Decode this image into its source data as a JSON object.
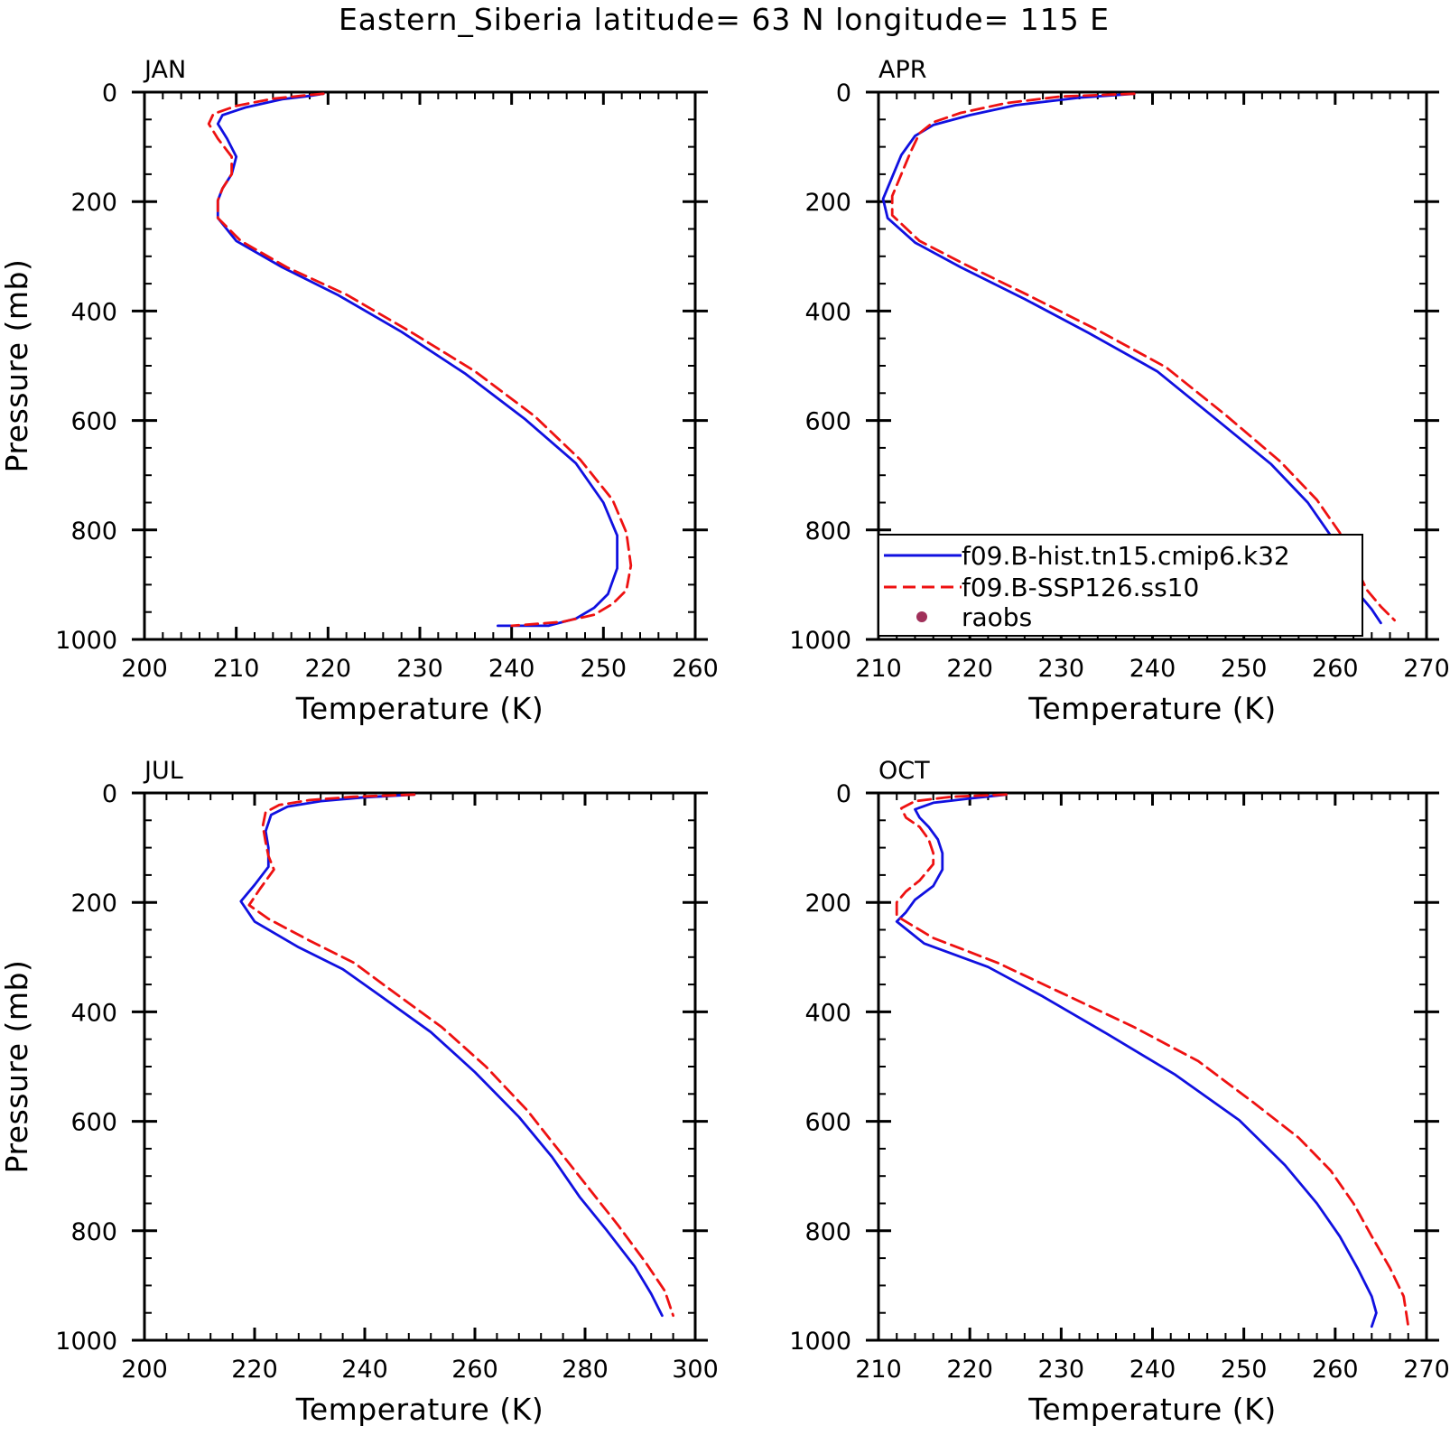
{
  "title": "Eastern_Siberia  latitude= 63 N longitude= 115 E",
  "colors": {
    "hist": "#1010e0",
    "ssp": "#ee1111",
    "raobs": "#a0305a"
  },
  "legend": {
    "location": "lower-right of APR panel",
    "entries": [
      {
        "label": "f09.B-hist.tn15.cmip6.k32",
        "style": "solid",
        "color": "#1010e0"
      },
      {
        "label": "f09.B-SSP126.ss10",
        "style": "dashed",
        "color": "#ee1111"
      },
      {
        "label": "raobs",
        "style": "dot",
        "color": "#a0305a"
      }
    ]
  },
  "chart_data": [
    {
      "type": "line",
      "title": "JAN",
      "xlabel": "Temperature (K)",
      "ylabel": "Pressure (mb)",
      "xlim": [
        200,
        260
      ],
      "ylim": [
        1000,
        0
      ],
      "xticks": [
        200,
        210,
        220,
        230,
        240,
        250,
        260
      ],
      "yticks": [
        0,
        200,
        400,
        600,
        800,
        1000
      ],
      "series": [
        {
          "name": "f09.B-hist.tn15.cmip6.k32",
          "style": "solid",
          "color": "#1010e0",
          "points": [
            [
              219.5,
              3
            ],
            [
              218,
              7
            ],
            [
              215,
              13
            ],
            [
              211,
              28
            ],
            [
              208.5,
              42
            ],
            [
              208,
              58
            ],
            [
              209,
              85
            ],
            [
              210,
              118
            ],
            [
              209.5,
              150
            ],
            [
              208.5,
              176
            ],
            [
              208,
              198
            ],
            [
              208,
              230
            ],
            [
              210,
              272
            ],
            [
              215,
              320
            ],
            [
              221,
              370
            ],
            [
              228,
              438
            ],
            [
              235,
              515
            ],
            [
              241.5,
              598
            ],
            [
              247,
              678
            ],
            [
              250,
              750
            ],
            [
              251.5,
              810
            ],
            [
              251.5,
              870
            ],
            [
              250.5,
              917
            ],
            [
              249,
              942
            ],
            [
              247,
              962
            ],
            [
              244,
              975
            ],
            [
              238.5,
              975
            ]
          ]
        },
        {
          "name": "f09.B-SSP126.ss10",
          "style": "dashed",
          "color": "#ee1111",
          "points": [
            [
              219.5,
              3
            ],
            [
              217.5,
              6
            ],
            [
              214,
              12
            ],
            [
              210,
              25
            ],
            [
              207.5,
              40
            ],
            [
              207,
              58
            ],
            [
              208,
              85
            ],
            [
              209.5,
              118
            ],
            [
              209.5,
              150
            ],
            [
              208.5,
              176
            ],
            [
              208,
              198
            ],
            [
              208,
              230
            ],
            [
              210.5,
              272
            ],
            [
              215.5,
              320
            ],
            [
              222,
              370
            ],
            [
              229,
              438
            ],
            [
              236,
              510
            ],
            [
              242.5,
              592
            ],
            [
              247.5,
              672
            ],
            [
              251,
              745
            ],
            [
              252.5,
              805
            ],
            [
              253,
              865
            ],
            [
              252.5,
              910
            ],
            [
              251,
              935
            ],
            [
              249,
              955
            ],
            [
              245.5,
              968
            ],
            [
              240,
              975
            ]
          ]
        }
      ]
    },
    {
      "type": "line",
      "title": "APR",
      "xlabel": "Temperature (K)",
      "ylabel": "",
      "xlim": [
        210,
        270
      ],
      "ylim": [
        1000,
        0
      ],
      "xticks": [
        210,
        220,
        230,
        240,
        250,
        260,
        270
      ],
      "yticks": [
        0,
        200,
        400,
        600,
        800,
        1000
      ],
      "series": [
        {
          "name": "f09.B-hist.tn15.cmip6.k32",
          "style": "solid",
          "color": "#1010e0",
          "points": [
            [
              238,
              3
            ],
            [
              232,
              10
            ],
            [
              225,
              24
            ],
            [
              220,
              42
            ],
            [
              216,
              60
            ],
            [
              214,
              80
            ],
            [
              212.5,
              115
            ],
            [
              211.5,
              155
            ],
            [
              210.5,
              195
            ],
            [
              211,
              230
            ],
            [
              214,
              275
            ],
            [
              219,
              320
            ],
            [
              226,
              378
            ],
            [
              233,
              440
            ],
            [
              240.5,
              510
            ],
            [
              247,
              598
            ],
            [
              253,
              680
            ],
            [
              257,
              750
            ],
            [
              259.5,
              810
            ],
            [
              261,
              865
            ],
            [
              262.5,
              915
            ],
            [
              264,
              945
            ],
            [
              265,
              970
            ]
          ]
        },
        {
          "name": "f09.B-SSP126.ss10",
          "style": "dashed",
          "color": "#ee1111",
          "points": [
            [
              238,
              3
            ],
            [
              230,
              8
            ],
            [
              224,
              20
            ],
            [
              219,
              38
            ],
            [
              216,
              55
            ],
            [
              214.5,
              75
            ],
            [
              213.5,
              110
            ],
            [
              212.5,
              150
            ],
            [
              211.5,
              190
            ],
            [
              211.5,
              225
            ],
            [
              214.5,
              272
            ],
            [
              219.5,
              315
            ],
            [
              226.5,
              372
            ],
            [
              234,
              435
            ],
            [
              241.5,
              503
            ],
            [
              248,
              590
            ],
            [
              254,
              675
            ],
            [
              258,
              745
            ],
            [
              260.5,
              805
            ],
            [
              262,
              860
            ],
            [
              263.5,
              910
            ],
            [
              265,
              940
            ],
            [
              266.5,
              965
            ]
          ]
        }
      ]
    },
    {
      "type": "line",
      "title": "JUL",
      "xlabel": "Temperature (K)",
      "ylabel": "Pressure (mb)",
      "xlim": [
        200,
        300
      ],
      "ylim": [
        1000,
        0
      ],
      "xticks": [
        200,
        220,
        240,
        260,
        280,
        300
      ],
      "yticks": [
        0,
        200,
        400,
        600,
        800,
        1000
      ],
      "series": [
        {
          "name": "f09.B-hist.tn15.cmip6.k32",
          "style": "solid",
          "color": "#1010e0",
          "points": [
            [
              249,
              3
            ],
            [
              240,
              8
            ],
            [
              232,
              15
            ],
            [
              226,
              25
            ],
            [
              223,
              40
            ],
            [
              222,
              70
            ],
            [
              222.5,
              100
            ],
            [
              222.5,
              135
            ],
            [
              220,
              168
            ],
            [
              217.5,
              198
            ],
            [
              220,
              235
            ],
            [
              228,
              282
            ],
            [
              236,
              322
            ],
            [
              243,
              372
            ],
            [
              252,
              437
            ],
            [
              260,
              510
            ],
            [
              268,
              592
            ],
            [
              274,
              665
            ],
            [
              279,
              738
            ],
            [
              284,
              800
            ],
            [
              289,
              865
            ],
            [
              292,
              915
            ],
            [
              294,
              955
            ]
          ]
        },
        {
          "name": "f09.B-SSP126.ss10",
          "style": "dashed",
          "color": "#ee1111",
          "points": [
            [
              249,
              3
            ],
            [
              238,
              7
            ],
            [
              230,
              13
            ],
            [
              224.5,
              22
            ],
            [
              222,
              35
            ],
            [
              221.5,
              60
            ],
            [
              222,
              90
            ],
            [
              222.5,
              115
            ],
            [
              223.5,
              140
            ],
            [
              221,
              175
            ],
            [
              219,
              205
            ],
            [
              222.5,
              230
            ],
            [
              230,
              270
            ],
            [
              238,
              310
            ],
            [
              245,
              362
            ],
            [
              254,
              428
            ],
            [
              262,
              500
            ],
            [
              269.5,
              580
            ],
            [
              275,
              650
            ],
            [
              280.5,
              720
            ],
            [
              286,
              790
            ],
            [
              291,
              858
            ],
            [
              294.5,
              910
            ],
            [
              296,
              955
            ]
          ]
        }
      ]
    },
    {
      "type": "line",
      "title": "OCT",
      "xlabel": "Temperature (K)",
      "ylabel": "",
      "xlim": [
        210,
        270
      ],
      "ylim": [
        1000,
        0
      ],
      "xticks": [
        210,
        220,
        230,
        240,
        250,
        260,
        270
      ],
      "yticks": [
        0,
        200,
        400,
        600,
        800,
        1000
      ],
      "series": [
        {
          "name": "f09.B-hist.tn15.cmip6.k32",
          "style": "solid",
          "color": "#1010e0",
          "points": [
            [
              224,
              3
            ],
            [
              220,
              10
            ],
            [
              216,
              18
            ],
            [
              214,
              30
            ],
            [
              214.5,
              45
            ],
            [
              215.5,
              62
            ],
            [
              216.5,
              85
            ],
            [
              217,
              110
            ],
            [
              217,
              140
            ],
            [
              216,
              170
            ],
            [
              214,
              195
            ],
            [
              213,
              218
            ],
            [
              212,
              235
            ],
            [
              215,
              275
            ],
            [
              222,
              318
            ],
            [
              228,
              372
            ],
            [
              235,
              440
            ],
            [
              242.5,
              515
            ],
            [
              249.5,
              598
            ],
            [
              254.5,
              680
            ],
            [
              258,
              750
            ],
            [
              260.5,
              810
            ],
            [
              262.5,
              870
            ],
            [
              264,
              920
            ],
            [
              264.5,
              950
            ],
            [
              264,
              975
            ]
          ]
        },
        {
          "name": "f09.B-SSP126.ss10",
          "style": "dashed",
          "color": "#ee1111",
          "points": [
            [
              224,
              3
            ],
            [
              218,
              7
            ],
            [
              214,
              15
            ],
            [
              212.5,
              28
            ],
            [
              213,
              45
            ],
            [
              214.5,
              62
            ],
            [
              215.5,
              85
            ],
            [
              216,
              110
            ],
            [
              216,
              130
            ],
            [
              214.5,
              160
            ],
            [
              213,
              180
            ],
            [
              212,
              200
            ],
            [
              212,
              225
            ],
            [
              216,
              265
            ],
            [
              223,
              310
            ],
            [
              230,
              365
            ],
            [
              238,
              428
            ],
            [
              245,
              490
            ],
            [
              251,
              565
            ],
            [
              256,
              630
            ],
            [
              259.5,
              690
            ],
            [
              262,
              750
            ],
            [
              264,
              810
            ],
            [
              266,
              868
            ],
            [
              267.5,
              920
            ],
            [
              268,
              975
            ]
          ]
        }
      ]
    }
  ]
}
